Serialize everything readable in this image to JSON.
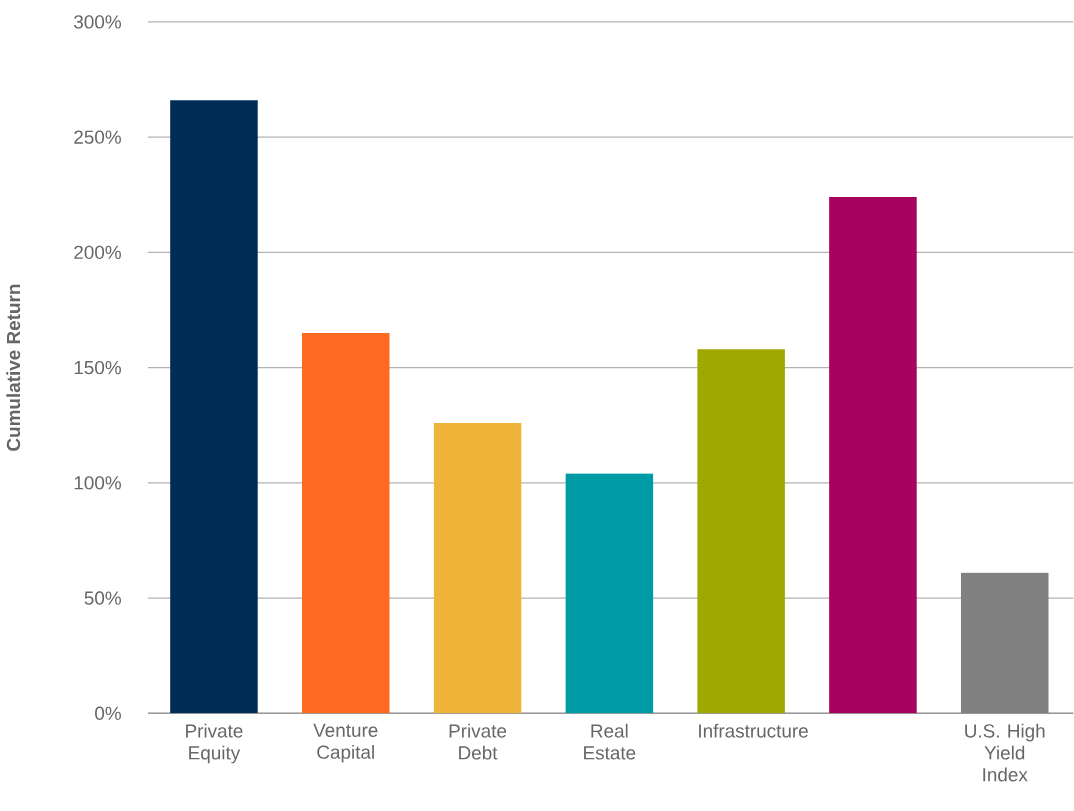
{
  "chart_data": {
    "type": "bar",
    "ylabel": "Cumulative Return",
    "categories": [
      "Private Equity",
      "Venture Capital",
      "Private Debt",
      "Real Estate",
      "Infrastructure",
      null,
      "U.S. High Yield Index"
    ],
    "values": [
      266,
      165,
      126,
      104,
      158,
      224,
      61
    ],
    "colors": [
      "#002d55",
      "#ff6a22",
      "#f0b43a",
      "#009ca6",
      "#9ea900",
      "#a8005f",
      "#808080"
    ],
    "ylim": [
      0,
      300
    ],
    "yticks": [
      {
        "value": 0,
        "label": "0%"
      },
      {
        "value": 50,
        "label": "50%"
      },
      {
        "value": 100,
        "label": "100%"
      },
      {
        "value": 150,
        "label": "150%"
      },
      {
        "value": 200,
        "label": "200%"
      },
      {
        "value": 250,
        "label": "250%"
      },
      {
        "value": 300,
        "label": "300%"
      }
    ],
    "grid": "y"
  }
}
